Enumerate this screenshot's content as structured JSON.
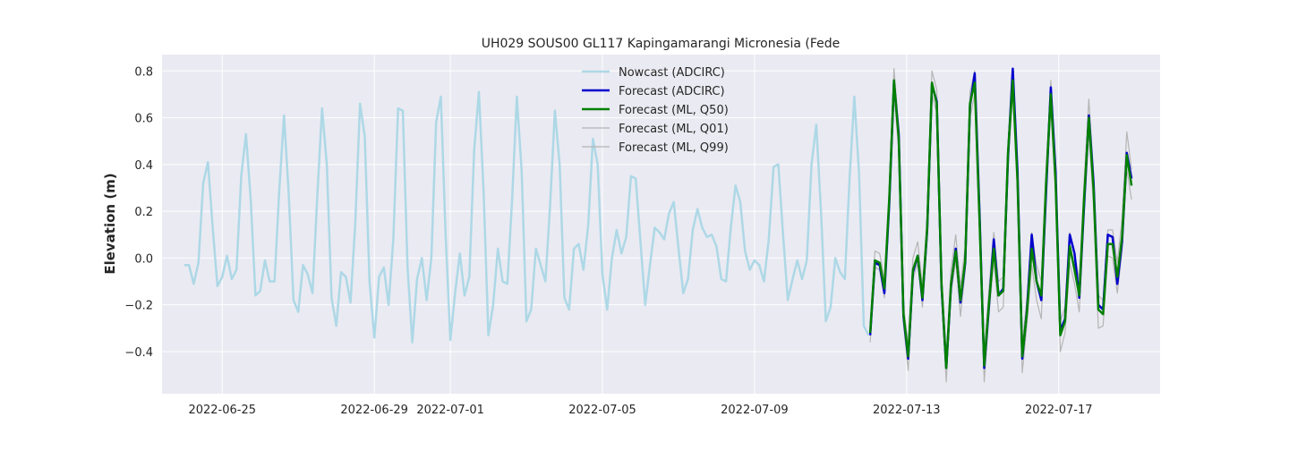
{
  "chart_data": {
    "type": "line",
    "title": "UH029 SOUS00 GL117 Kapingamarangi Micronesia (Fede",
    "xlabel": "",
    "ylabel": "Elevation (m)",
    "xlim": [
      "2022-06-23T10:00",
      "2022-07-19T16:00"
    ],
    "ylim": [
      -0.58,
      0.87
    ],
    "x_ticks": [
      "2022-06-25",
      "2022-06-29",
      "2022-07-01",
      "2022-07-05",
      "2022-07-09",
      "2022-07-13",
      "2022-07-17"
    ],
    "y_ticks": [
      -0.4,
      -0.2,
      0.0,
      0.2,
      0.4,
      0.6,
      0.8
    ],
    "y_tick_labels": [
      "−0.4",
      "−0.2",
      "0.0",
      "0.2",
      "0.4",
      "0.6",
      "0.8"
    ],
    "grid": true,
    "legend_position": "top-center",
    "background_color": "#eaeaf2",
    "series": [
      {
        "name": "Nowcast (ADCIRC)",
        "color": "#add8e6",
        "width": 2.5,
        "start": "2022-06-24T00:00",
        "step_hours": 3,
        "values": [
          -0.03,
          -0.03,
          -0.11,
          -0.02,
          0.32,
          0.41,
          0.13,
          -0.12,
          -0.08,
          0.01,
          -0.09,
          -0.05,
          0.35,
          0.53,
          0.25,
          -0.16,
          -0.14,
          -0.01,
          -0.1,
          -0.1,
          0.29,
          0.61,
          0.27,
          -0.18,
          -0.23,
          -0.03,
          -0.07,
          -0.15,
          0.26,
          0.64,
          0.4,
          -0.17,
          -0.29,
          -0.06,
          -0.08,
          -0.19,
          0.15,
          0.66,
          0.52,
          -0.1,
          -0.34,
          -0.08,
          -0.04,
          -0.2,
          0.08,
          0.64,
          0.63,
          -0.04,
          -0.36,
          -0.09,
          0.0,
          -0.18,
          0.0,
          0.58,
          0.69,
          0.1,
          -0.35,
          -0.15,
          0.02,
          -0.16,
          -0.08,
          0.46,
          0.71,
          0.28,
          -0.33,
          -0.2,
          0.04,
          -0.1,
          -0.11,
          0.25,
          0.69,
          0.37,
          -0.27,
          -0.22,
          0.04,
          -0.03,
          -0.1,
          0.23,
          0.63,
          0.4,
          -0.17,
          -0.22,
          0.04,
          0.06,
          -0.05,
          0.14,
          0.51,
          0.4,
          -0.07,
          -0.22,
          0.0,
          0.12,
          0.02,
          0.09,
          0.35,
          0.34,
          0.07,
          -0.2,
          -0.03,
          0.13,
          0.11,
          0.08,
          0.19,
          0.24,
          0.04,
          -0.15,
          -0.09,
          0.12,
          0.21,
          0.13,
          0.09,
          0.1,
          0.05,
          -0.09,
          -0.1,
          0.13,
          0.31,
          0.24,
          0.03,
          -0.05,
          -0.01,
          -0.03,
          -0.1,
          0.08,
          0.39,
          0.4,
          0.1,
          -0.18,
          -0.09,
          -0.01,
          -0.09,
          -0.01,
          0.4,
          0.57,
          0.19,
          -0.27,
          -0.21,
          0.0,
          -0.06,
          -0.09,
          0.34,
          0.69,
          0.36,
          -0.29,
          -0.33
        ]
      },
      {
        "name": "Forecast (ADCIRC)",
        "color": "#0000cd",
        "width": 2.5,
        "start": "2022-07-12T01:00",
        "step_hours": 3,
        "values": [
          -0.33,
          -0.02,
          -0.03,
          -0.15,
          0.23,
          0.75,
          0.53,
          -0.25,
          -0.43,
          -0.06,
          0.01,
          -0.18,
          0.12,
          0.74,
          0.67,
          -0.12,
          -0.47,
          -0.12,
          0.04,
          -0.19,
          -0.02,
          0.65,
          0.79,
          0.2,
          -0.47,
          -0.2,
          0.08,
          -0.16,
          -0.13,
          0.43,
          0.81,
          0.37,
          -0.43,
          -0.22,
          0.1,
          -0.1,
          -0.18,
          0.28,
          0.73,
          0.37,
          -0.31,
          -0.26,
          0.1,
          0.02,
          -0.17,
          0.22,
          0.61,
          0.32,
          -0.2,
          -0.22,
          0.1,
          0.09,
          -0.11,
          0.07,
          0.45,
          0.34
        ]
      },
      {
        "name": "Forecast (ML, Q50)",
        "color": "#008000",
        "width": 2.5,
        "start": "2022-07-12T01:00",
        "step_hours": 3,
        "values": [
          -0.32,
          -0.01,
          -0.02,
          -0.13,
          0.25,
          0.76,
          0.51,
          -0.24,
          -0.42,
          -0.05,
          0.01,
          -0.17,
          0.13,
          0.75,
          0.66,
          -0.11,
          -0.47,
          -0.11,
          0.03,
          -0.18,
          -0.01,
          0.66,
          0.75,
          0.17,
          -0.46,
          -0.19,
          0.04,
          -0.16,
          -0.14,
          0.45,
          0.76,
          0.33,
          -0.42,
          -0.23,
          0.04,
          -0.1,
          -0.16,
          0.32,
          0.7,
          0.33,
          -0.33,
          -0.27,
          0.05,
          -0.05,
          -0.16,
          0.25,
          0.6,
          0.29,
          -0.22,
          -0.24,
          0.06,
          0.06,
          -0.08,
          0.09,
          0.44,
          0.31
        ]
      },
      {
        "name": "Forecast (ML, Q01)",
        "color": "#b5b5b5",
        "width": 1.2,
        "start": "2022-07-12T01:00",
        "step_hours": 3,
        "values": [
          -0.36,
          -0.04,
          -0.05,
          -0.17,
          0.21,
          0.71,
          0.46,
          -0.28,
          -0.48,
          -0.09,
          -0.02,
          -0.21,
          0.09,
          0.7,
          0.62,
          -0.16,
          -0.53,
          -0.15,
          -0.01,
          -0.25,
          -0.05,
          0.6,
          0.7,
          0.12,
          -0.53,
          -0.24,
          -0.01,
          -0.23,
          -0.21,
          0.4,
          0.7,
          0.28,
          -0.49,
          -0.28,
          -0.03,
          -0.18,
          -0.26,
          0.26,
          0.64,
          0.27,
          -0.4,
          -0.32,
          -0.02,
          -0.11,
          -0.23,
          0.18,
          0.53,
          0.22,
          -0.3,
          -0.29,
          0.01,
          0.0,
          -0.15,
          0.03,
          0.38,
          0.25
        ]
      },
      {
        "name": "Forecast (ML, Q99)",
        "color": "#b5b5b5",
        "width": 1.2,
        "start": "2022-07-12T01:00",
        "step_hours": 3,
        "values": [
          -0.28,
          0.03,
          0.02,
          -0.09,
          0.3,
          0.81,
          0.56,
          -0.2,
          -0.37,
          0.0,
          0.07,
          -0.12,
          0.18,
          0.8,
          0.72,
          -0.06,
          -0.42,
          -0.05,
          0.1,
          -0.12,
          0.05,
          0.71,
          0.8,
          0.23,
          -0.41,
          -0.13,
          0.11,
          -0.1,
          -0.08,
          0.5,
          0.8,
          0.38,
          -0.37,
          -0.17,
          0.11,
          -0.03,
          -0.1,
          0.38,
          0.76,
          0.39,
          -0.27,
          -0.21,
          0.11,
          0.02,
          -0.09,
          0.32,
          0.68,
          0.36,
          -0.16,
          -0.18,
          0.12,
          0.12,
          -0.02,
          0.17,
          0.54,
          0.38
        ]
      }
    ]
  }
}
